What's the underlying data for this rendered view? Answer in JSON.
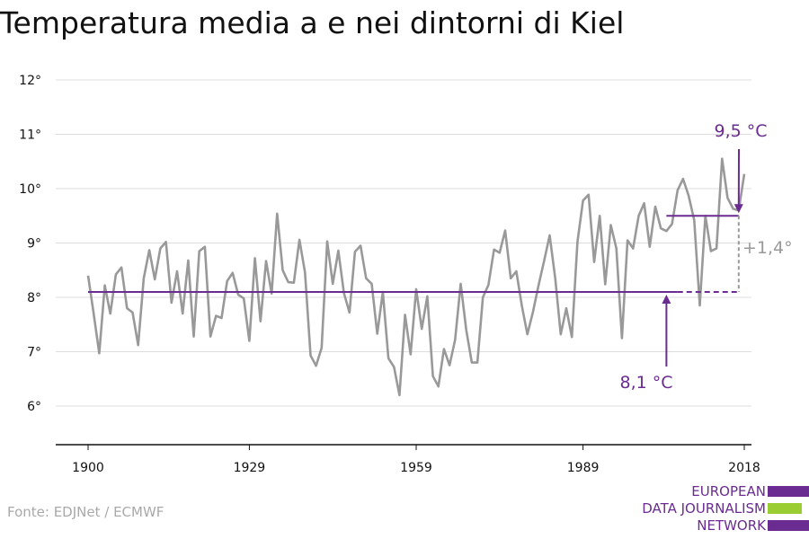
{
  "title": "Temperatura media a e nei dintorni di Kiel",
  "source": "Fonte: EDJNet / ECMWF",
  "logo": {
    "lines": [
      "EUROPEAN",
      "DATA JOURNALISM",
      "NETWORK"
    ],
    "colors": [
      "#6b2c91",
      "#9acd32",
      "#6b2c91"
    ]
  },
  "chart_data": {
    "type": "line",
    "x_ticks": [
      "1900",
      "1929",
      "1959",
      "1989",
      "2018"
    ],
    "y_ticks": [
      "6°",
      "7°",
      "8°",
      "9°",
      "10°",
      "11°",
      "12°"
    ],
    "ylim": [
      6,
      12
    ],
    "xlim": [
      1900,
      2018
    ],
    "grid": true,
    "series": [
      {
        "color": "#999999",
        "x": [
          1900,
          1901,
          1902,
          1903,
          1904,
          1905,
          1906,
          1907,
          1908,
          1909,
          1910,
          1911,
          1912,
          1913,
          1914,
          1915,
          1916,
          1917,
          1918,
          1919,
          1920,
          1921,
          1922,
          1923,
          1924,
          1925,
          1926,
          1927,
          1928,
          1929,
          1930,
          1931,
          1932,
          1933,
          1934,
          1935,
          1936,
          1937,
          1938,
          1939,
          1940,
          1941,
          1942,
          1943,
          1944,
          1945,
          1946,
          1947,
          1948,
          1949,
          1950,
          1951,
          1952,
          1953,
          1954,
          1955,
          1956,
          1957,
          1958,
          1959,
          1960,
          1961,
          1962,
          1963,
          1964,
          1965,
          1966,
          1967,
          1968,
          1969,
          1970,
          1971,
          1972,
          1973,
          1974,
          1975,
          1976,
          1977,
          1978,
          1979,
          1980,
          1981,
          1982,
          1983,
          1984,
          1985,
          1986,
          1987,
          1988,
          1989,
          1990,
          1991,
          1992,
          1993,
          1994,
          1995,
          1996,
          1997,
          1998,
          1999,
          2000,
          2001,
          2002,
          2003,
          2004,
          2005,
          2006,
          2007,
          2008,
          2009,
          2010,
          2011,
          2012,
          2013,
          2014,
          2015,
          2016,
          2017,
          2018
        ],
        "y": [
          8.4,
          7.7,
          6.97,
          8.22,
          7.7,
          8.42,
          8.55,
          7.8,
          7.72,
          7.12,
          8.35,
          8.87,
          8.33,
          8.9,
          9.02,
          7.9,
          8.48,
          7.7,
          8.68,
          7.28,
          8.85,
          8.93,
          7.28,
          7.66,
          7.62,
          8.3,
          8.45,
          8.05,
          7.98,
          7.2,
          8.72,
          7.56,
          8.67,
          8.07,
          9.54,
          8.5,
          8.28,
          8.27,
          9.06,
          8.46,
          6.93,
          6.74,
          7.07,
          9.03,
          8.25,
          8.86,
          8.08,
          7.72,
          8.84,
          8.95,
          8.35,
          8.25,
          7.33,
          8.1,
          6.88,
          6.72,
          6.2,
          7.68,
          6.95,
          8.15,
          7.42,
          8.02,
          6.55,
          6.36,
          7.05,
          6.75,
          7.22,
          8.25,
          7.4,
          6.8,
          6.8,
          8.0,
          8.23,
          8.88,
          8.82,
          9.23,
          8.35,
          8.48,
          7.85,
          7.32,
          7.73,
          8.22,
          8.67,
          9.14,
          8.35,
          7.32,
          7.8,
          7.27,
          9.02,
          9.78,
          9.89,
          8.65,
          9.5,
          8.24,
          9.33,
          8.9,
          7.25,
          9.05,
          8.9,
          9.5,
          9.73,
          8.93,
          9.67,
          9.27,
          9.22,
          9.35,
          9.97,
          10.18,
          9.87,
          9.42,
          7.85,
          9.5,
          8.85,
          8.9,
          10.55,
          9.83,
          9.63,
          9.6,
          10.27
        ]
      }
    ],
    "annotations": {
      "baseline": {
        "value": 8.1,
        "label": "8,1 °C",
        "color": "#6b2c91"
      },
      "recent": {
        "value": 9.5,
        "label": "9,5 °C",
        "color": "#6b2c91"
      },
      "difference": {
        "label": "+1,4°",
        "color": "#999999"
      }
    }
  }
}
